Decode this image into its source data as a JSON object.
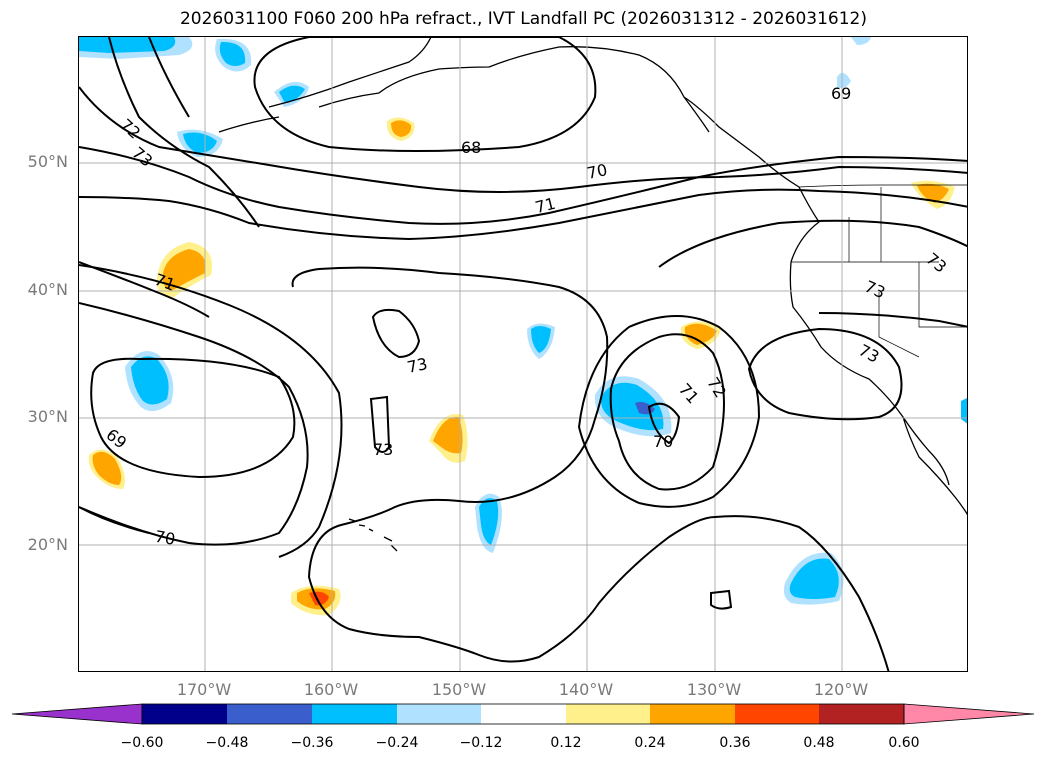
{
  "title": "2026031100 F060 200 hPa refract., IVT Landfall PC (2026031312 - 2026031612)",
  "lat_labels": [
    {
      "label": "50°N",
      "lat": 50
    },
    {
      "label": "40°N",
      "lat": 40
    },
    {
      "label": "30°N",
      "lat": 30
    },
    {
      "label": "20°N",
      "lat": 20
    }
  ],
  "lon_labels": [
    {
      "label": "170°W",
      "lon": -170
    },
    {
      "label": "160°W",
      "lon": -160
    },
    {
      "label": "150°W",
      "lon": -150
    },
    {
      "label": "140°W",
      "lon": -140
    },
    {
      "label": "130°W",
      "lon": -130
    },
    {
      "label": "120°W",
      "lon": -120
    }
  ],
  "contour_labels": [
    "72",
    "73",
    "68",
    "70",
    "71",
    "69",
    "71",
    "73",
    "73",
    "73",
    "71",
    "72",
    "70",
    "69",
    "70",
    "73",
    "73"
  ],
  "colorbar": {
    "ticks": [
      "−0.60",
      "−0.48",
      "−0.36",
      "−0.24",
      "−0.12",
      "0.12",
      "0.24",
      "0.36",
      "0.48",
      "0.60"
    ],
    "colors": [
      "#9932cc",
      "#00008b",
      "#3a5fcd",
      "#00bfff",
      "#b0e2ff",
      "#ffffff",
      "#fff08c",
      "#ffa500",
      "#ff4500",
      "#b22222",
      "#ff87a8"
    ]
  },
  "colors": {
    "land_outline": "#000000",
    "grid": "#b0b0b0",
    "contour": "#000000"
  }
}
